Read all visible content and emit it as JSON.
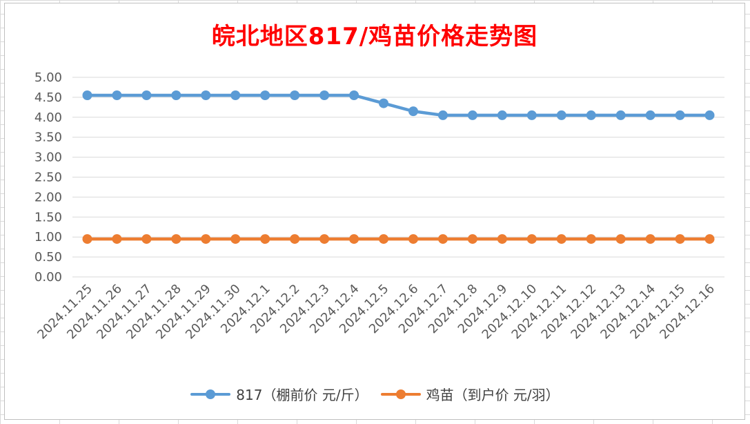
{
  "chart_data": {
    "type": "line",
    "title": "皖北地区817/鸡苗价格走势图",
    "categories": [
      "2024.11.25",
      "2024.11.26",
      "2024.11.27",
      "2024.11.28",
      "2024.11.29",
      "2024.11.30",
      "2024.12.1",
      "2024.12.2",
      "2024.12.3",
      "2024.12.4",
      "2024.12.5",
      "2024.12.6",
      "2024.12.7",
      "2024.12.8",
      "2024.12.9",
      "2024.12.10",
      "2024.12.11",
      "2024.12.12",
      "2024.12.13",
      "2024.12.14",
      "2024.12.15",
      "2024.12.16"
    ],
    "series": [
      {
        "name": "817（棚前价 元/斤）",
        "color": "#5b9bd5",
        "values": [
          4.55,
          4.55,
          4.55,
          4.55,
          4.55,
          4.55,
          4.55,
          4.55,
          4.55,
          4.55,
          4.35,
          4.15,
          4.05,
          4.05,
          4.05,
          4.05,
          4.05,
          4.05,
          4.05,
          4.05,
          4.05,
          4.05
        ]
      },
      {
        "name": "鸡苗（到户价 元/羽）",
        "color": "#ed7d31",
        "values": [
          0.95,
          0.95,
          0.95,
          0.95,
          0.95,
          0.95,
          0.95,
          0.95,
          0.95,
          0.95,
          0.95,
          0.95,
          0.95,
          0.95,
          0.95,
          0.95,
          0.95,
          0.95,
          0.95,
          0.95,
          0.95,
          0.95
        ]
      }
    ],
    "y_ticks": [
      "0.00",
      "0.50",
      "1.00",
      "1.50",
      "2.00",
      "2.50",
      "3.00",
      "3.50",
      "4.00",
      "4.50",
      "5.00"
    ],
    "ylim": [
      0,
      5
    ],
    "xlabel": "",
    "ylabel": "",
    "grid": "horizontal",
    "legend_position": "bottom"
  }
}
